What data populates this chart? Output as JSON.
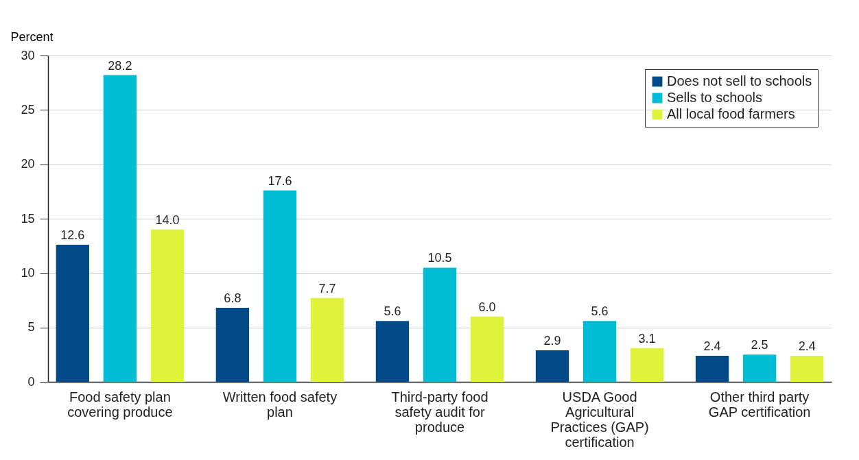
{
  "chart_data": {
    "type": "bar",
    "ylabel": "Percent",
    "categories": [
      "Food safety plan covering produce",
      "Written food safety plan",
      "Third-party food safety audit for produce",
      "USDA Good Agricultural Practices (GAP) certification",
      "Other third party GAP certification"
    ],
    "series": [
      {
        "name": "Does not sell to schools",
        "color": "#004b87",
        "values": [
          12.6,
          6.8,
          5.6,
          2.9,
          2.4
        ],
        "value_labels": [
          "12.6",
          "6.8",
          "5.6",
          "2.9",
          "2.4"
        ]
      },
      {
        "name": "Sells to schools",
        "color": "#00bcd4",
        "values": [
          28.2,
          17.6,
          10.5,
          5.6,
          2.5
        ],
        "value_labels": [
          "28.2",
          "17.6",
          "10.5",
          "5.6",
          "2.5"
        ]
      },
      {
        "name": "All local food farmers",
        "color": "#dff23a",
        "values": [
          14.0,
          7.7,
          6.0,
          3.1,
          2.4
        ],
        "value_labels": [
          "14.0",
          "7.7",
          "6.0",
          "3.1",
          "2.4"
        ]
      }
    ],
    "ylim": [
      0,
      30
    ],
    "yticks": [
      0,
      5,
      10,
      15,
      20,
      25,
      30
    ],
    "grid": "y",
    "legend": "top right"
  }
}
